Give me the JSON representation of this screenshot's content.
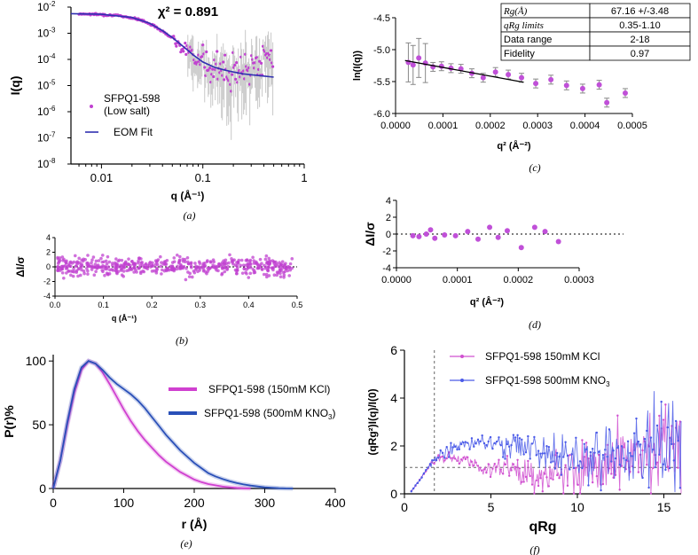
{
  "chart_data": [
    {
      "panel": "a",
      "type": "scatter",
      "caption": "(a)",
      "annotation": "χ² = 0.891",
      "xlabel": "q (Å⁻¹)",
      "ylabel": "I(q)",
      "xscale": "log",
      "yscale": "log",
      "xlim": [
        0.005,
        1
      ],
      "ylim": [
        1e-08,
        0.01
      ],
      "xticks": [
        {
          "v": 0.01,
          "label": "0.01"
        },
        {
          "v": 0.1,
          "label": "0.1"
        },
        {
          "v": 1,
          "label": "1"
        }
      ],
      "yticks": [
        {
          "v": 0.01,
          "base": "10",
          "exp": "-2"
        },
        {
          "v": 0.001,
          "base": "10",
          "exp": "-3"
        },
        {
          "v": 0.0001,
          "base": "10",
          "exp": "-4"
        },
        {
          "v": 1e-05,
          "base": "10",
          "exp": "-5"
        },
        {
          "v": 1e-06,
          "base": "10",
          "exp": "-6"
        },
        {
          "v": 1e-07,
          "base": "10",
          "exp": "-7"
        },
        {
          "v": 1e-08,
          "base": "10",
          "exp": "-8"
        }
      ],
      "legend": [
        "SFPQ1-598",
        "(Low salt)",
        "EOM Fit"
      ],
      "series": [
        {
          "name": "SFPQ1-598 (Low salt)",
          "kind": "points",
          "color": "#c040d0",
          "q": [
            0.006,
            0.008,
            0.01,
            0.013,
            0.016,
            0.02,
            0.025,
            0.03,
            0.035,
            0.04,
            0.05,
            0.06,
            0.07,
            0.08,
            0.09,
            0.1,
            0.12,
            0.15,
            0.18,
            0.22,
            0.26,
            0.3,
            0.35,
            0.4,
            0.45,
            0.5
          ],
          "I": [
            0.0055,
            0.0054,
            0.0052,
            0.0049,
            0.0045,
            0.0039,
            0.0031,
            0.0023,
            0.0017,
            0.0012,
            0.00065,
            0.00038,
            0.00023,
            0.000145,
            0.0001,
            7e-05,
            5e-05,
            4e-05,
            3.5e-05,
            3e-05,
            3.5e-05,
            4e-05,
            5e-05,
            8e-05,
            0.00012,
            0.0002
          ]
        },
        {
          "name": "EOM Fit",
          "kind": "line",
          "color": "#3030b0",
          "q": [
            0.005,
            0.01,
            0.02,
            0.03,
            0.04,
            0.05,
            0.06,
            0.08,
            0.1,
            0.13,
            0.16,
            0.2,
            0.25,
            0.3,
            0.4,
            0.5
          ],
          "I": [
            0.0056,
            0.0053,
            0.004,
            0.0024,
            0.00125,
            0.00068,
            0.00039,
            0.00015,
            8e-05,
            5e-05,
            4e-05,
            3.3e-05,
            2.8e-05,
            2.6e-05,
            2.3e-05,
            2.1e-05
          ]
        }
      ]
    },
    {
      "panel": "b",
      "type": "scatter",
      "caption": "(b)",
      "xlabel": "q (Å⁻¹)",
      "ylabel": "ΔI/σ",
      "xlim": [
        0,
        0.5
      ],
      "ylim": [
        -4,
        4
      ],
      "xticks": [
        {
          "v": 0,
          "label": "0.0"
        },
        {
          "v": 0.1,
          "label": "0.1"
        },
        {
          "v": 0.2,
          "label": "0.2"
        },
        {
          "v": 0.3,
          "label": "0.3"
        },
        {
          "v": 0.4,
          "label": "0.4"
        },
        {
          "v": 0.5,
          "label": "0.5"
        }
      ],
      "yticks": [
        {
          "v": 4,
          "label": "4"
        },
        {
          "v": 2,
          "label": "2"
        },
        {
          "v": 0,
          "label": "0"
        },
        {
          "v": -2,
          "label": "-2"
        },
        {
          "v": -4,
          "label": "-4"
        }
      ],
      "series": [
        {
          "name": "residuals",
          "color": "#c040d0",
          "x_range": [
            0.005,
            0.49
          ],
          "spread_sigma": 1.0
        }
      ]
    },
    {
      "panel": "c",
      "type": "scatter",
      "caption": "(c)",
      "xlabel": "q² (Å⁻²)",
      "ylabel": "ln(I(q))",
      "xlim": [
        0,
        0.0005
      ],
      "ylim": [
        -6.0,
        -4.5
      ],
      "xticks": [
        {
          "v": 0,
          "label": "0.0000"
        },
        {
          "v": 0.0001,
          "label": "0.0001"
        },
        {
          "v": 0.0002,
          "label": "0.0002"
        },
        {
          "v": 0.0003,
          "label": "0.0003"
        },
        {
          "v": 0.0004,
          "label": "0.0004"
        },
        {
          "v": 0.0005,
          "label": "0.0005"
        }
      ],
      "yticks": [
        {
          "v": -4.5,
          "label": "-4.5"
        },
        {
          "v": -5.0,
          "label": "-5.0"
        },
        {
          "v": -5.5,
          "label": "-5.5"
        },
        {
          "v": -6.0,
          "label": "-6.0"
        }
      ],
      "x": [
        2.7e-05,
        3.7e-05,
        4.9e-05,
        6.3e-05,
        7.9e-05,
        9.7e-05,
        0.000117,
        0.000138,
        0.000161,
        0.000185,
        0.000211,
        0.000238,
        0.000266,
        0.000296,
        0.000328,
        0.000361,
        0.000395,
        0.00043,
        0.000446,
        0.000485
      ],
      "y": [
        -5.2,
        -5.24,
        -5.13,
        -5.21,
        -5.27,
        -5.26,
        -5.29,
        -5.3,
        -5.37,
        -5.44,
        -5.35,
        -5.39,
        -5.44,
        -5.53,
        -5.47,
        -5.56,
        -5.61,
        -5.55,
        -5.83,
        -5.68
      ],
      "fit": {
        "x": [
          2e-05,
          0.00027
        ],
        "y": [
          -5.17,
          -5.51
        ]
      },
      "table": [
        {
          "param": "Rg(Å)",
          "value": "67.16 +/-3.48"
        },
        {
          "param": "qRg limits",
          "value": "0.35-1.10"
        },
        {
          "param": "Data range",
          "value": "2-18"
        },
        {
          "param": "Fidelity",
          "value": "0.97"
        }
      ]
    },
    {
      "panel": "d",
      "type": "scatter",
      "caption": "(d)",
      "xlabel": "q² (Å⁻²)",
      "ylabel": "ΔI/σ",
      "xlim": [
        0,
        0.0003
      ],
      "ylim": [
        -4,
        4
      ],
      "xticks": [
        {
          "v": 0,
          "label": "0.0000"
        },
        {
          "v": 0.0001,
          "label": "0.0001"
        },
        {
          "v": 0.0002,
          "label": "0.0002"
        },
        {
          "v": 0.0003,
          "label": "0.0003"
        }
      ],
      "yticks": [
        {
          "v": 4,
          "label": "4"
        },
        {
          "v": 2,
          "label": "2"
        },
        {
          "v": 0,
          "label": "0"
        },
        {
          "v": -2,
          "label": "-2"
        },
        {
          "v": -4,
          "label": "-4"
        }
      ],
      "x": [
        2.7e-05,
        3.7e-05,
        4.9e-05,
        5.6e-05,
        6.3e-05,
        7.9e-05,
        9.7e-05,
        0.000117,
        0.000134,
        0.000153,
        0.000167,
        0.000182,
        0.000205,
        0.000227,
        0.000244,
        0.000266
      ],
      "y": [
        -0.2,
        -0.3,
        0.0,
        0.5,
        -0.5,
        -0.1,
        -0.2,
        0.3,
        -0.6,
        0.8,
        -0.4,
        0.4,
        -1.6,
        0.8,
        0.3,
        -0.9
      ]
    },
    {
      "panel": "e",
      "type": "line",
      "caption": "(e)",
      "xlabel": "r (Å)",
      "ylabel": "P(r)%",
      "xlim": [
        0,
        400
      ],
      "ylim": [
        0,
        105
      ],
      "xticks": [
        {
          "v": 0,
          "label": "0"
        },
        {
          "v": 100,
          "label": "100"
        },
        {
          "v": 200,
          "label": "200"
        },
        {
          "v": 300,
          "label": "300"
        },
        {
          "v": 400,
          "label": "400"
        }
      ],
      "yticks": [
        {
          "v": 0,
          "label": "0"
        },
        {
          "v": 50,
          "label": "50"
        },
        {
          "v": 100,
          "label": "100"
        }
      ],
      "series": [
        {
          "name": "SFPQ1-598 (150mM KCl)",
          "color": "#d040d0",
          "x": [
            0,
            10,
            20,
            30,
            40,
            50,
            60,
            70,
            80,
            90,
            100,
            110,
            120,
            130,
            140,
            150,
            160,
            170,
            180,
            190,
            200,
            210,
            220,
            230,
            240,
            250,
            260,
            270,
            280
          ],
          "y": [
            0,
            22,
            50,
            75,
            93,
            100,
            98,
            91,
            82,
            72,
            62,
            53,
            45,
            38,
            32,
            26,
            21,
            17,
            13,
            10,
            7,
            5,
            3.5,
            2.5,
            1.5,
            1,
            0.5,
            0.2,
            0
          ]
        },
        {
          "name": "SFPQ1-598 (500mM KNO3)",
          "color": "#2a50b8",
          "x": [
            0,
            10,
            20,
            30,
            40,
            50,
            60,
            70,
            80,
            90,
            100,
            110,
            120,
            130,
            140,
            150,
            160,
            170,
            180,
            190,
            200,
            210,
            220,
            230,
            240,
            250,
            260,
            270,
            280,
            290,
            300,
            310,
            320,
            330,
            340
          ],
          "y": [
            0,
            22,
            52,
            78,
            95,
            100,
            98,
            93,
            87,
            82,
            78,
            74,
            69,
            63,
            56,
            49,
            42,
            36,
            30,
            25,
            20,
            16,
            12,
            9.5,
            7.5,
            5.8,
            4.3,
            3.2,
            2.3,
            1.6,
            1.0,
            0.6,
            0.3,
            0.1,
            0
          ]
        }
      ],
      "legend": {
        "kcl": "SFPQ1-598 (150mM KCl)",
        "kno3_main": "SFPQ1-598 (500mM KNO",
        "kno3_sub": "3",
        "kno3_end": ")"
      }
    },
    {
      "panel": "f",
      "type": "line",
      "caption": "(f)",
      "xlabel": "qRg",
      "ylabel": "(qRg²)I(q)/I(0)",
      "xlim": [
        0,
        16
      ],
      "ylim": [
        0,
        6
      ],
      "xticks": [
        {
          "v": 0,
          "label": "0"
        },
        {
          "v": 5,
          "label": "5"
        },
        {
          "v": 10,
          "label": "10"
        },
        {
          "v": 15,
          "label": "15"
        }
      ],
      "yticks": [
        {
          "v": 0,
          "label": "0"
        },
        {
          "v": 2,
          "label": "2"
        },
        {
          "v": 4,
          "label": "4"
        },
        {
          "v": 6,
          "label": "6"
        }
      ],
      "guides": {
        "vline_x": 1.73,
        "hline_y": 1.1
      },
      "series": [
        {
          "name": "SFPQ1-598 150mM KCl",
          "color": "#d050d0",
          "x": [
            0.4,
            1,
            1.5,
            2,
            2.5,
            3,
            3.5,
            4,
            4.5,
            5,
            5.5,
            6,
            6.5,
            7,
            7.5,
            8,
            9,
            10,
            11,
            12,
            13,
            14,
            15,
            16
          ],
          "y": [
            0.1,
            0.7,
            1.2,
            1.5,
            1.5,
            1.45,
            1.35,
            1.25,
            1.1,
            1.0,
            0.95,
            0.9,
            0.85,
            0.8,
            0.8,
            0.85,
            0.9,
            1.0,
            1.1,
            1.2,
            1.4,
            1.6,
            1.9,
            2.0
          ]
        },
        {
          "name": "SFPQ1-598 500mM KNO3",
          "color": "#4a5ae8",
          "x": [
            0.4,
            1,
            1.5,
            2,
            2.5,
            3,
            3.5,
            4,
            4.5,
            5,
            5.5,
            6,
            6.5,
            7,
            7.5,
            8,
            9,
            10,
            11,
            12,
            13,
            14,
            15,
            16
          ],
          "y": [
            0.1,
            0.7,
            1.25,
            1.6,
            1.8,
            1.95,
            2.05,
            2.1,
            2.15,
            2.1,
            2.05,
            2.0,
            1.95,
            1.9,
            1.8,
            1.7,
            1.6,
            1.55,
            1.5,
            1.5,
            1.6,
            1.8,
            2.0,
            2.2
          ]
        }
      ],
      "legend": {
        "kcl": "SFPQ1-598 150mM KCl",
        "kno3_main": "SFPQ1-598 500mM KNO",
        "kno3_sub": "3"
      }
    }
  ]
}
